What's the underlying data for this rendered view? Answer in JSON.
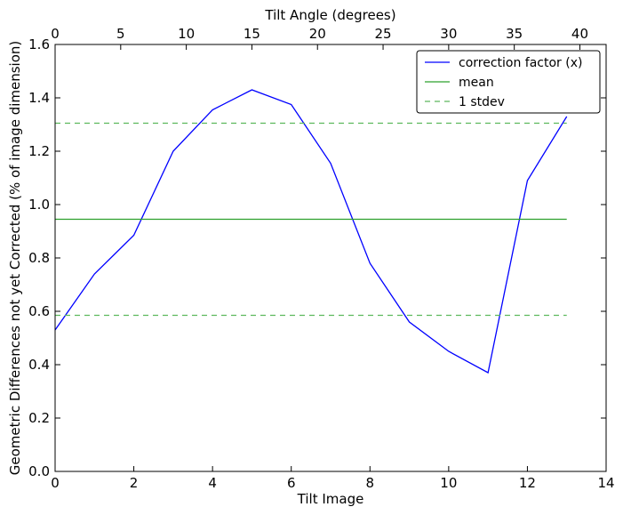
{
  "chart_data": {
    "type": "line",
    "xlabel": "Tilt Image",
    "ylabel": "Geometric Differences not yet Corrected (% of image dimension)",
    "top_xlabel": "Tilt Angle (degrees)",
    "xlim": [
      0,
      14
    ],
    "ylim": [
      0,
      1.6
    ],
    "top_xlim": [
      0,
      42
    ],
    "x_ticks": [
      "0",
      "2",
      "4",
      "6",
      "8",
      "10",
      "12",
      "14"
    ],
    "x_tick_values": [
      0,
      2,
      4,
      6,
      8,
      10,
      12,
      14
    ],
    "y_ticks": [
      "0.0",
      "0.2",
      "0.4",
      "0.6",
      "0.8",
      "1.0",
      "1.2",
      "1.4",
      "1.6"
    ],
    "y_tick_values": [
      0,
      0.2,
      0.4,
      0.6,
      0.8,
      1.0,
      1.2,
      1.4,
      1.6
    ],
    "top_x_ticks": [
      "0",
      "5",
      "10",
      "15",
      "20",
      "25",
      "30",
      "35",
      "40"
    ],
    "top_x_tick_values": [
      0,
      5,
      10,
      15,
      20,
      25,
      30,
      35,
      40
    ],
    "grid": false,
    "legend_position": "top-right",
    "series": [
      {
        "name": "correction factor (x)",
        "color": "#0000ff",
        "style": "solid",
        "x": [
          0,
          1,
          2,
          3,
          4,
          5,
          6,
          7,
          8,
          9,
          10,
          11,
          12,
          13
        ],
        "y": [
          0.53,
          0.74,
          0.885,
          1.2,
          1.355,
          1.43,
          1.375,
          1.155,
          0.78,
          0.56,
          0.45,
          0.37,
          1.09,
          1.33
        ]
      },
      {
        "name": "mean",
        "color": "#2ca02c",
        "style": "solid",
        "x": [
          0,
          13
        ],
        "y": [
          0.945,
          0.945
        ]
      },
      {
        "name": "1 stdev",
        "color": "#5cb85c",
        "style": "dashed",
        "x": [
          0,
          13
        ],
        "y": [
          1.305,
          1.305
        ]
      },
      {
        "name": "",
        "color": "#5cb85c",
        "style": "dashed",
        "x": [
          0,
          13
        ],
        "y": [
          0.585,
          0.585
        ]
      }
    ],
    "legend": [
      "correction factor (x)",
      "mean",
      "1 stdev"
    ]
  }
}
